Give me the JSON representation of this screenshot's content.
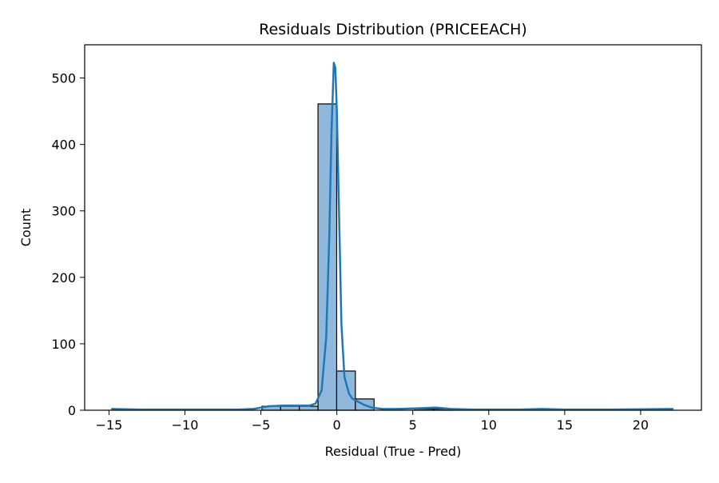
{
  "chart_data": {
    "type": "bar",
    "title": "Residuals Distribution (PRICEEACH)",
    "xlabel": "Residual (True - Pred)",
    "ylabel": "Count",
    "xlim": [
      -16.6,
      24.0
    ],
    "ylim": [
      0,
      550
    ],
    "xticks": [
      -15,
      -10,
      -5,
      0,
      5,
      10,
      15,
      20
    ],
    "xtick_labels": [
      "−15",
      "−10",
      "−5",
      "0",
      "5",
      "10",
      "15",
      "20"
    ],
    "yticks": [
      0,
      100,
      200,
      300,
      400,
      500
    ],
    "ytick_labels": [
      "0",
      "100",
      "200",
      "300",
      "400",
      "500"
    ],
    "grid": false,
    "legend": "none",
    "bin_width": 1.23,
    "bins": [
      {
        "x0": -4.93,
        "count": 6
      },
      {
        "x0": -3.7,
        "count": 6
      },
      {
        "x0": -2.47,
        "count": 6
      },
      {
        "x0": -1.24,
        "count": 461
      },
      {
        "x0": -0.01,
        "count": 59
      },
      {
        "x0": 1.22,
        "count": 17
      },
      {
        "x0": 5.14,
        "count": 2
      },
      {
        "x0": 6.37,
        "count": 2
      }
    ],
    "kde": {
      "x": [
        -14.8,
        -13,
        -10,
        -8,
        -6.5,
        -5.5,
        -5,
        -4.5,
        -3.5,
        -2.5,
        -1.8,
        -1.4,
        -1.0,
        -0.7,
        -0.5,
        -0.35,
        -0.2,
        -0.1,
        0.0,
        0.15,
        0.3,
        0.5,
        0.8,
        1.0,
        1.3,
        1.8,
        2.3,
        3.0,
        4.0,
        5.5,
        6.5,
        7.5,
        9,
        12,
        13.5,
        15,
        18,
        22.1
      ],
      "y": [
        2,
        1,
        1,
        1,
        1,
        2,
        4,
        6,
        7,
        7,
        7,
        10,
        30,
        110,
        260,
        420,
        523,
        515,
        450,
        290,
        130,
        50,
        25,
        18,
        14,
        8,
        4,
        2,
        2,
        3,
        4,
        2,
        1,
        1,
        2,
        1,
        1,
        2
      ]
    },
    "colors": {
      "bar_fill": "#8fb8dc",
      "bar_edge": "#000000",
      "kde_line": "#1f77b4"
    }
  }
}
